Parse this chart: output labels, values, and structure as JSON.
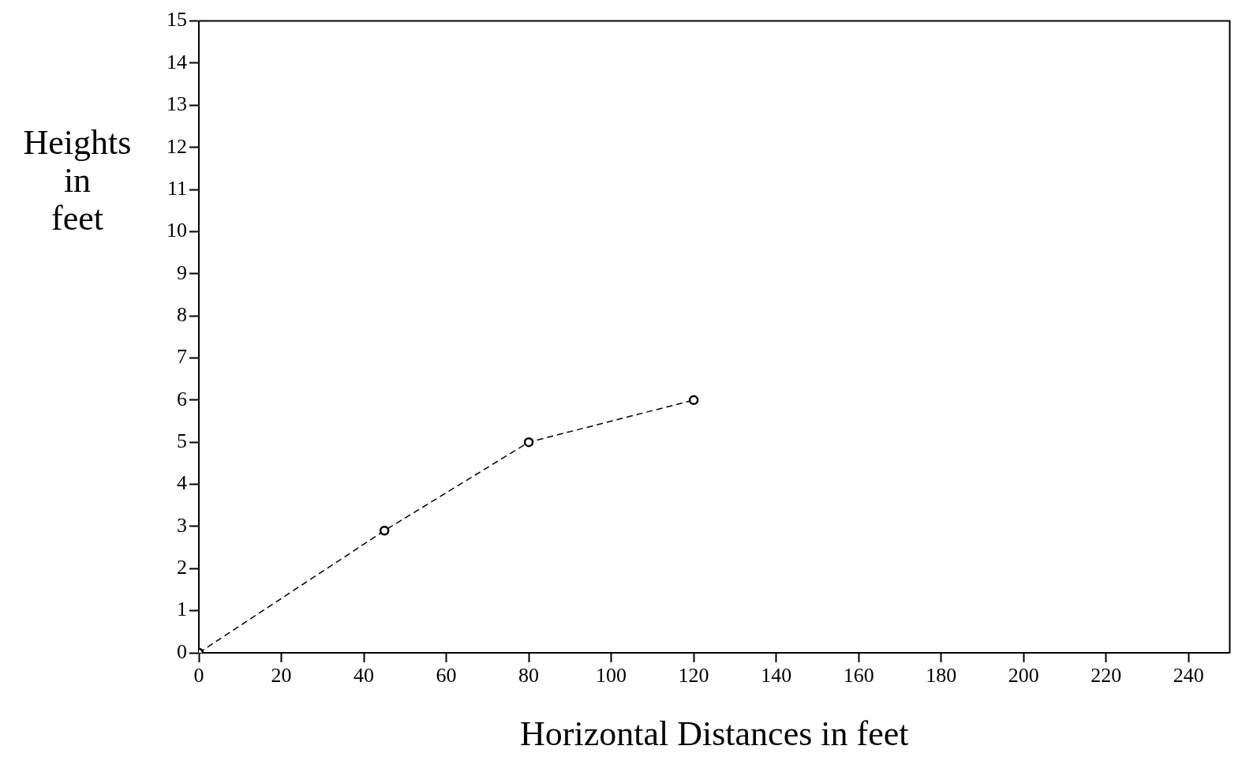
{
  "chart_data": {
    "type": "line",
    "xlabel": "Horizontal Distances in feet",
    "ylabel": "Heights in feet",
    "x": [
      0,
      45,
      80,
      120
    ],
    "series": [
      {
        "color": "#000000",
        "values": [
          0,
          2.9,
          5,
          6
        ]
      }
    ],
    "xlim": [
      0,
      250
    ],
    "xticks": [
      0,
      20,
      40,
      60,
      80,
      100,
      120,
      140,
      160,
      180,
      200,
      220,
      240
    ],
    "ylim": [
      0,
      15
    ],
    "yticks": [
      0,
      1,
      2,
      3,
      4,
      5,
      6,
      7,
      8,
      9,
      10,
      11,
      12,
      13,
      14,
      15
    ],
    "grid": false,
    "legend": false,
    "marker": "circle",
    "line_style": "dashed"
  }
}
